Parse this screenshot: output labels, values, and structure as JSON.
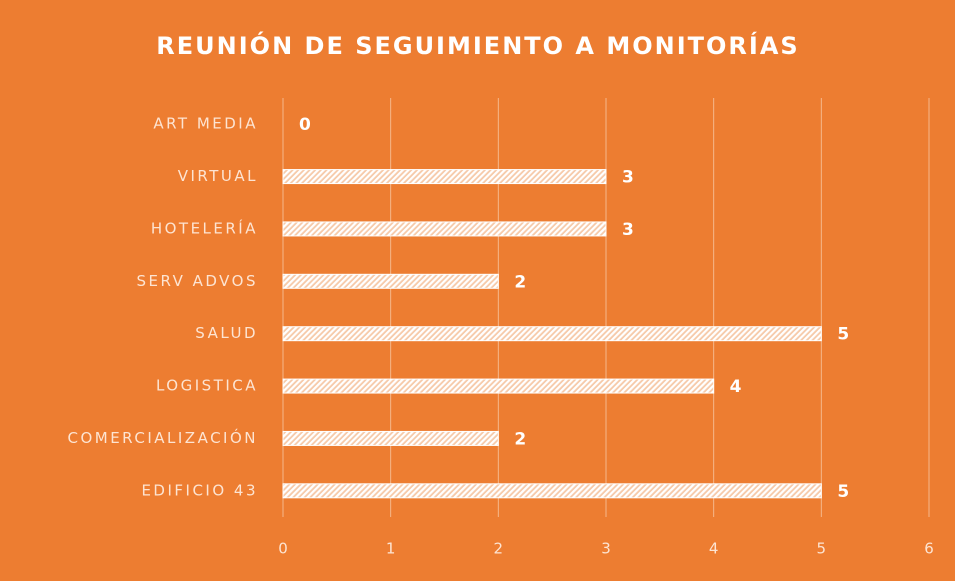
{
  "chart_data": {
    "type": "bar",
    "orientation": "horizontal",
    "title": "REUNIÓN DE SEGUIMIENTO A MONITORÍAS",
    "categories": [
      "ART MEDIA",
      "VIRTUAL",
      "HOTELERÍA",
      "SERV ADVOS",
      "SALUD",
      "LOGISTICA",
      "COMERCIALIZACIÓN",
      "EDIFICIO 43"
    ],
    "values": [
      0,
      3,
      3,
      2,
      5,
      4,
      2,
      5
    ],
    "color": "#ffffff",
    "background": "#ed7d31",
    "xlim": [
      0,
      6
    ],
    "xticks": [
      0,
      1,
      2,
      3,
      4,
      5,
      6
    ],
    "grid": true
  }
}
